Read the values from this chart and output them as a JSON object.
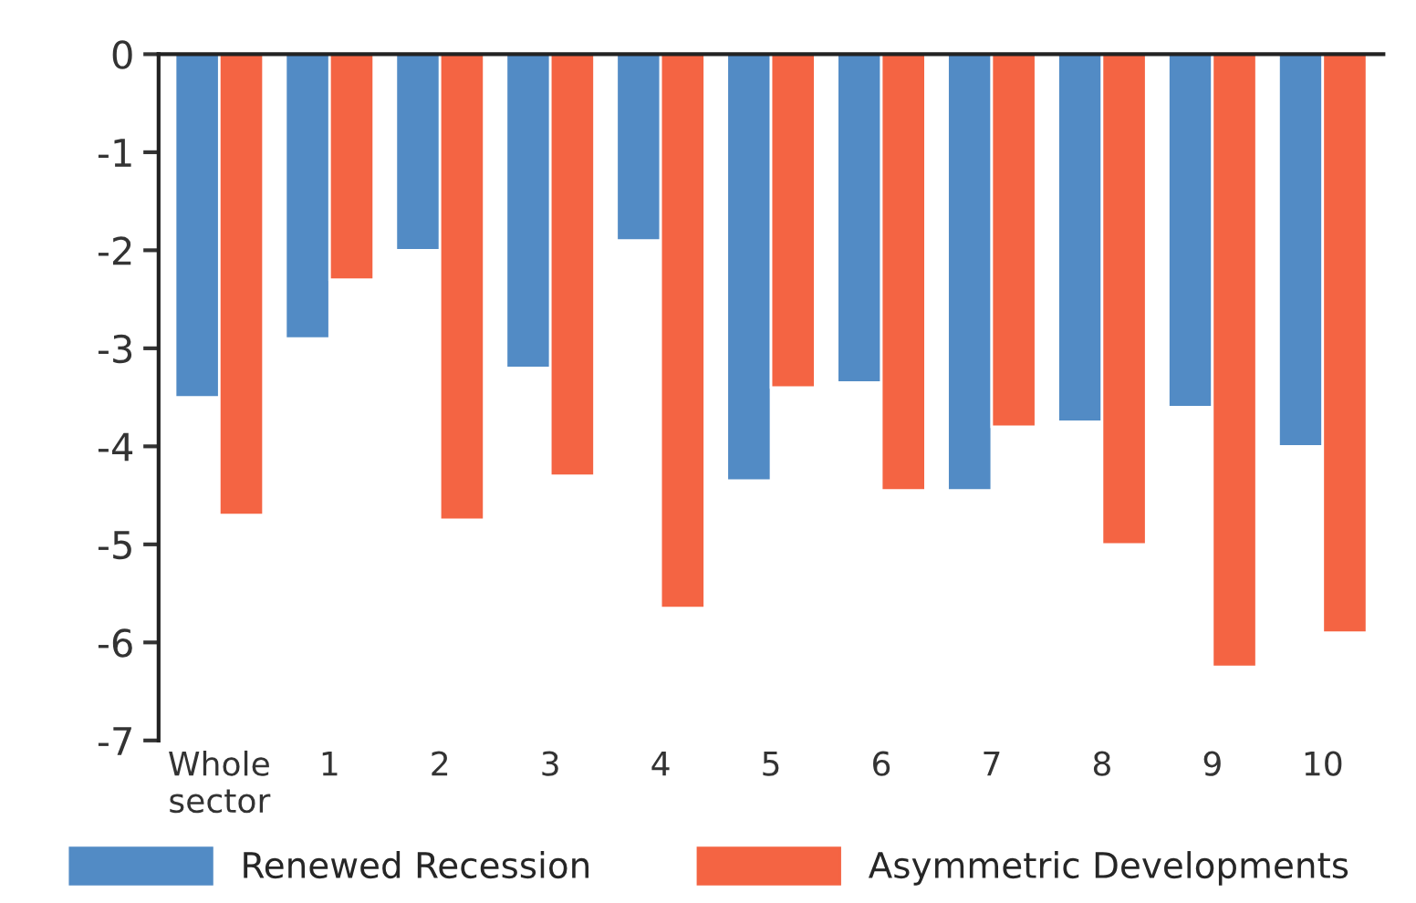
{
  "chart_data": {
    "type": "bar",
    "categories": [
      "Whole\nsector",
      "1",
      "2",
      "3",
      "4",
      "5",
      "6",
      "7",
      "8",
      "9",
      "10"
    ],
    "series": [
      {
        "name": "Renewed Recession",
        "color": "#528bc5",
        "values": [
          -3.5,
          -2.9,
          -2.0,
          -3.2,
          -1.9,
          -4.35,
          -3.35,
          -4.45,
          -3.75,
          -3.6,
          -4.0
        ]
      },
      {
        "name": "Asymmetric Developments",
        "color": "#f46443",
        "values": [
          -4.7,
          -2.3,
          -4.75,
          -4.3,
          -5.65,
          -3.4,
          -4.45,
          -3.8,
          -5.0,
          -6.25,
          -5.9
        ]
      }
    ],
    "ylim": [
      -7,
      0
    ],
    "yticks": [
      0,
      -1,
      -2,
      -3,
      -4,
      -5,
      -6,
      -7
    ],
    "grid": false,
    "legend": "bottom"
  }
}
